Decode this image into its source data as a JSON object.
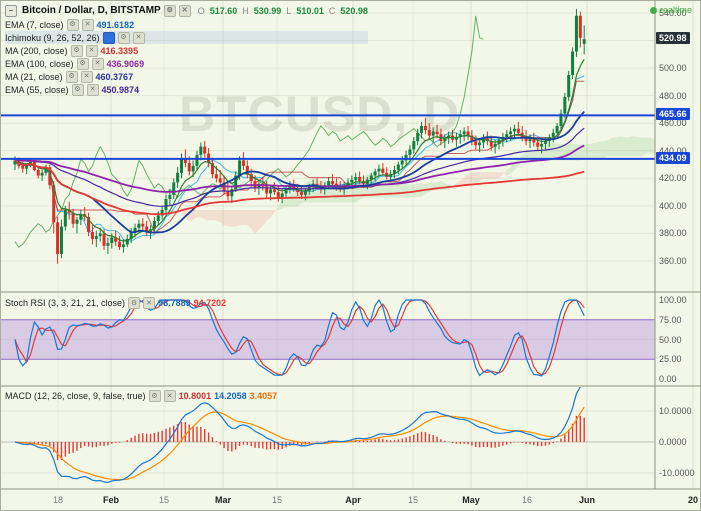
{
  "watermark": "BTCUSD, D",
  "header": {
    "window_icon": "−",
    "title": "Bitcoin / Dollar, D, BITSTAMP",
    "ohlc": [
      {
        "label": "O",
        "value": "517.60"
      },
      {
        "label": "H",
        "value": "530.99"
      },
      {
        "label": "L",
        "value": "510.01"
      },
      {
        "label": "C",
        "value": "520.98"
      }
    ],
    "realtime_label": "realtime"
  },
  "indicators": [
    {
      "name": "EMA (7, close)",
      "value": "491.6182",
      "color": "#1565c0",
      "selected": false
    },
    {
      "name": "Ichimoku (9, 26, 52, 26)",
      "value": "",
      "color": "#333333",
      "selected": true
    },
    {
      "name": "MA (200, close)",
      "value": "416.3395",
      "color": "#d32f2f",
      "selected": false
    },
    {
      "name": "EMA (100, close)",
      "value": "436.9069",
      "color": "#8e24aa",
      "selected": false
    },
    {
      "name": "MA (21, close)",
      "value": "460.3767",
      "color": "#283593",
      "selected": false
    },
    {
      "name": "EMA (55, close)",
      "value": "450.9874",
      "color": "#4527a0",
      "selected": false
    }
  ],
  "stoch_legend": {
    "name": "Stoch RSI (3, 3, 21, 21, close)",
    "values": [
      {
        "text": "98.7889",
        "color": "#1565c0"
      },
      {
        "text": "94.7202",
        "color": "#e53935"
      }
    ]
  },
  "macd_legend": {
    "name": "MACD (12, 26, close, 9, false, true)",
    "values": [
      {
        "text": "10.8001",
        "color": "#d32f2f"
      },
      {
        "text": "14.2058",
        "color": "#1565c0"
      },
      {
        "text": "3.4057",
        "color": "#ef6c00"
      }
    ]
  },
  "colors": {
    "up": "#0f8040",
    "down": "#d93025",
    "level": "#1a46d8",
    "ma21": "#1a3e9c",
    "ema100": "#8e24aa",
    "ma200": "#e53935",
    "ema7": "#2e7d32",
    "ema55": "#4527a0",
    "tenkan": "#039be5",
    "kijun": "#b71c1c",
    "chikou": "#43a047",
    "cloud_up": "rgba(76,175,80,0.15)",
    "cloud_down": "rgba(229,57,53,0.12)",
    "stoch_k": "#1976d2",
    "stoch_d": "#e53935",
    "macd_line": "#1976d2",
    "macd_signal": "#fb8c00",
    "macd_hist": "#e53935",
    "band": "#bf9fdf",
    "realtime": "#3fae49"
  },
  "chart_data": {
    "type": "candlestick",
    "symbol": "BTCUSD",
    "exchange": "BITSTAMP",
    "timeframe": "D",
    "last": {
      "price": 520.98,
      "label": "520.98"
    },
    "levels": [
      {
        "price": 465.66,
        "label": "465.66"
      },
      {
        "price": 434.09,
        "label": "434.09"
      }
    ],
    "price_axis": {
      "ticks": [
        540,
        500,
        480,
        460,
        440,
        420,
        400,
        380,
        360
      ],
      "grid_extra": [
        520
      ],
      "decimals": 2,
      "ylim": [
        352,
        548
      ]
    },
    "stoch_axis": {
      "ticks": [
        {
          "v": 100,
          "label": "100.00"
        },
        {
          "v": 75,
          "label": "75.00"
        },
        {
          "v": 50,
          "label": "50.00"
        },
        {
          "v": 25,
          "label": "25.00"
        },
        {
          "v": 0,
          "label": "0.00"
        }
      ],
      "band": [
        25,
        75
      ]
    },
    "macd_axis": {
      "ticks": [
        {
          "v": 10,
          "label": "10.0000"
        },
        {
          "v": 0,
          "label": "0.0000"
        },
        {
          "v": -10,
          "label": "-10.0000"
        }
      ]
    },
    "time_axis": [
      {
        "label": "18",
        "x": 57,
        "major": false
      },
      {
        "label": "Feb",
        "x": 110,
        "major": true
      },
      {
        "label": "15",
        "x": 163,
        "major": false
      },
      {
        "label": "Mar",
        "x": 222,
        "major": true
      },
      {
        "label": "15",
        "x": 276,
        "major": false
      },
      {
        "label": "Apr",
        "x": 352,
        "major": true
      },
      {
        "label": "15",
        "x": 412,
        "major": false
      },
      {
        "label": "May",
        "x": 470,
        "major": true
      },
      {
        "label": "16",
        "x": 526,
        "major": false
      },
      {
        "label": "Jun",
        "x": 586,
        "major": true
      },
      {
        "label": "20",
        "x": 692,
        "major": true
      }
    ],
    "params": {
      "mas": [
        {
          "type": "ema",
          "period": 7
        },
        {
          "type": "sma",
          "period": 200
        },
        {
          "type": "ema",
          "period": 100
        },
        {
          "type": "sma",
          "period": 21
        },
        {
          "type": "ema",
          "period": 55
        }
      ],
      "ichimoku": [
        9,
        26,
        52,
        26
      ],
      "stoch_rsi": [
        3,
        3,
        21,
        21
      ],
      "macd": [
        12,
        26,
        9
      ]
    },
    "candles": [
      [
        430,
        436,
        426,
        433
      ],
      [
        433,
        435,
        427,
        429
      ],
      [
        429,
        432,
        424,
        427
      ],
      [
        427,
        431,
        423,
        430
      ],
      [
        430,
        434,
        428,
        432
      ],
      [
        432,
        433,
        425,
        426
      ],
      [
        426,
        428,
        420,
        422
      ],
      [
        422,
        426,
        418,
        424
      ],
      [
        424,
        430,
        422,
        428
      ],
      [
        428,
        430,
        412,
        415
      ],
      [
        415,
        418,
        380,
        388
      ],
      [
        388,
        392,
        358,
        365
      ],
      [
        365,
        390,
        362,
        385
      ],
      [
        385,
        400,
        382,
        397
      ],
      [
        397,
        403,
        390,
        395
      ],
      [
        395,
        398,
        384,
        387
      ],
      [
        387,
        392,
        380,
        390
      ],
      [
        390,
        397,
        386,
        394
      ],
      [
        394,
        399,
        389,
        392
      ],
      [
        392,
        395,
        378,
        381
      ],
      [
        381,
        386,
        372,
        376
      ],
      [
        376,
        382,
        370,
        378
      ],
      [
        378,
        384,
        374,
        380
      ],
      [
        380,
        383,
        368,
        371
      ],
      [
        371,
        377,
        365,
        373
      ],
      [
        373,
        380,
        369,
        377
      ],
      [
        377,
        382,
        371,
        374
      ],
      [
        374,
        378,
        368,
        370
      ],
      [
        370,
        376,
        366,
        372
      ],
      [
        372,
        379,
        370,
        376
      ],
      [
        376,
        384,
        373,
        381
      ],
      [
        381,
        387,
        377,
        384
      ],
      [
        384,
        390,
        380,
        387
      ],
      [
        387,
        391,
        382,
        385
      ],
      [
        385,
        389,
        378,
        381
      ],
      [
        381,
        386,
        376,
        383
      ],
      [
        383,
        392,
        381,
        389
      ],
      [
        389,
        396,
        386,
        393
      ],
      [
        393,
        400,
        390,
        397
      ],
      [
        397,
        408,
        394,
        405
      ],
      [
        405,
        412,
        400,
        408
      ],
      [
        408,
        420,
        405,
        417
      ],
      [
        417,
        428,
        413,
        424
      ],
      [
        424,
        438,
        420,
        434
      ],
      [
        434,
        441,
        428,
        431
      ],
      [
        431,
        436,
        422,
        425
      ],
      [
        425,
        433,
        421,
        429
      ],
      [
        429,
        440,
        426,
        437
      ],
      [
        437,
        446,
        433,
        443
      ],
      [
        443,
        447,
        435,
        438
      ],
      [
        438,
        442,
        428,
        431
      ],
      [
        431,
        435,
        420,
        423
      ],
      [
        423,
        429,
        417,
        420
      ],
      [
        420,
        426,
        414,
        417
      ],
      [
        417,
        422,
        408,
        411
      ],
      [
        411,
        418,
        404,
        407
      ],
      [
        407,
        414,
        402,
        412
      ],
      [
        412,
        425,
        410,
        422
      ],
      [
        422,
        436,
        419,
        433
      ],
      [
        433,
        439,
        426,
        429
      ],
      [
        429,
        433,
        420,
        423
      ],
      [
        423,
        427,
        415,
        418
      ],
      [
        418,
        422,
        410,
        413
      ],
      [
        413,
        419,
        408,
        416
      ],
      [
        416,
        421,
        411,
        414
      ],
      [
        414,
        418,
        406,
        409
      ],
      [
        409,
        415,
        404,
        412
      ],
      [
        412,
        417,
        408,
        410
      ],
      [
        410,
        414,
        403,
        406
      ],
      [
        406,
        412,
        402,
        409
      ],
      [
        409,
        415,
        406,
        413
      ],
      [
        413,
        418,
        409,
        415
      ],
      [
        415,
        419,
        410,
        412
      ],
      [
        412,
        416,
        407,
        410
      ],
      [
        410,
        414,
        405,
        408
      ],
      [
        408,
        413,
        404,
        411
      ],
      [
        411,
        416,
        408,
        414
      ],
      [
        414,
        419,
        410,
        416
      ],
      [
        416,
        420,
        412,
        415
      ],
      [
        415,
        418,
        409,
        412
      ],
      [
        412,
        417,
        408,
        415
      ],
      [
        415,
        421,
        412,
        418
      ],
      [
        418,
        423,
        414,
        416
      ],
      [
        416,
        420,
        411,
        414
      ],
      [
        414,
        418,
        410,
        413
      ],
      [
        413,
        417,
        408,
        415
      ],
      [
        415,
        420,
        412,
        417
      ],
      [
        417,
        422,
        413,
        419
      ],
      [
        419,
        424,
        415,
        421
      ],
      [
        421,
        425,
        416,
        418
      ],
      [
        418,
        422,
        413,
        416
      ],
      [
        416,
        421,
        412,
        419
      ],
      [
        419,
        424,
        415,
        422
      ],
      [
        422,
        427,
        418,
        425
      ],
      [
        425,
        430,
        421,
        427
      ],
      [
        427,
        431,
        422,
        424
      ],
      [
        424,
        428,
        419,
        421
      ],
      [
        421,
        426,
        417,
        423
      ],
      [
        423,
        429,
        420,
        426
      ],
      [
        426,
        432,
        423,
        430
      ],
      [
        430,
        436,
        427,
        433
      ],
      [
        433,
        440,
        430,
        437
      ],
      [
        437,
        444,
        433,
        441
      ],
      [
        441,
        450,
        438,
        447
      ],
      [
        447,
        456,
        444,
        453
      ],
      [
        453,
        461,
        449,
        458
      ],
      [
        458,
        464,
        452,
        455
      ],
      [
        455,
        460,
        448,
        451
      ],
      [
        451,
        457,
        446,
        454
      ],
      [
        454,
        459,
        449,
        452
      ],
      [
        452,
        456,
        444,
        447
      ],
      [
        447,
        452,
        442,
        449
      ],
      [
        449,
        454,
        445,
        451
      ],
      [
        451,
        455,
        446,
        448
      ],
      [
        448,
        453,
        443,
        450
      ],
      [
        450,
        455,
        445,
        452
      ],
      [
        452,
        457,
        447,
        454
      ],
      [
        454,
        458,
        448,
        451
      ],
      [
        451,
        455,
        444,
        447
      ],
      [
        447,
        451,
        441,
        444
      ],
      [
        444,
        449,
        439,
        446
      ],
      [
        446,
        452,
        442,
        449
      ],
      [
        449,
        454,
        444,
        447
      ],
      [
        447,
        451,
        440,
        443
      ],
      [
        443,
        448,
        438,
        445
      ],
      [
        445,
        450,
        441,
        448
      ],
      [
        448,
        453,
        443,
        450
      ],
      [
        450,
        455,
        446,
        452
      ],
      [
        452,
        457,
        447,
        454
      ],
      [
        454,
        459,
        449,
        456
      ],
      [
        456,
        461,
        451,
        453
      ],
      [
        453,
        458,
        447,
        450
      ],
      [
        450,
        455,
        444,
        447
      ],
      [
        447,
        452,
        442,
        449
      ],
      [
        449,
        453,
        443,
        446
      ],
      [
        446,
        450,
        440,
        443
      ],
      [
        443,
        448,
        438,
        445
      ],
      [
        445,
        450,
        441,
        447
      ],
      [
        447,
        452,
        443,
        450
      ],
      [
        450,
        456,
        446,
        453
      ],
      [
        453,
        460,
        450,
        458
      ],
      [
        458,
        470,
        455,
        467
      ],
      [
        467,
        482,
        464,
        479
      ],
      [
        479,
        498,
        476,
        495
      ],
      [
        495,
        515,
        492,
        512
      ],
      [
        512,
        543,
        508,
        538
      ],
      [
        538,
        541,
        515,
        522
      ],
      [
        517.6,
        530.99,
        510.01,
        520.98
      ]
    ]
  }
}
